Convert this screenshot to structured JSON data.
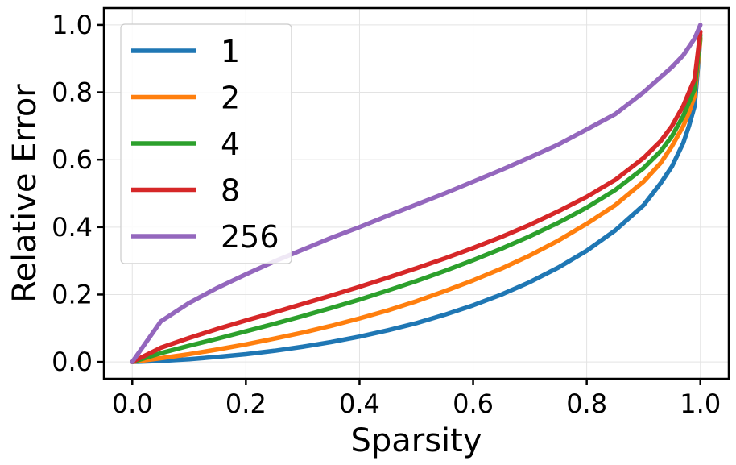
{
  "chart_data": {
    "type": "line",
    "title": "",
    "xlabel": "Sparsity",
    "ylabel": "Relative Error",
    "xlim": [
      -0.05,
      1.05
    ],
    "ylim": [
      -0.05,
      1.05
    ],
    "xticks": [
      0.0,
      0.2,
      0.4,
      0.6,
      0.8,
      1.0
    ],
    "yticks": [
      0.0,
      0.2,
      0.4,
      0.6,
      0.8,
      1.0
    ],
    "grid": true,
    "legend_position": "top-left",
    "x": [
      0,
      0.05,
      0.1,
      0.15,
      0.2,
      0.25,
      0.3,
      0.35,
      0.4,
      0.45,
      0.5,
      0.55,
      0.6,
      0.65,
      0.7,
      0.75,
      0.8,
      0.85,
      0.9,
      0.93,
      0.95,
      0.97,
      0.98,
      0.99,
      1.0
    ],
    "series": [
      {
        "name": "1",
        "color": "#1f77b4",
        "values": [
          0.0,
          0.003,
          0.008,
          0.015,
          0.023,
          0.033,
          0.045,
          0.059,
          0.075,
          0.094,
          0.115,
          0.14,
          0.168,
          0.2,
          0.237,
          0.28,
          0.33,
          0.39,
          0.465,
          0.53,
          0.58,
          0.65,
          0.7,
          0.76,
          0.96
        ]
      },
      {
        "name": "2",
        "color": "#ff7f0e",
        "values": [
          0.0,
          0.011,
          0.023,
          0.037,
          0.052,
          0.069,
          0.087,
          0.107,
          0.129,
          0.153,
          0.18,
          0.21,
          0.242,
          0.277,
          0.316,
          0.36,
          0.41,
          0.465,
          0.535,
          0.59,
          0.64,
          0.7,
          0.74,
          0.79,
          0.96
        ]
      },
      {
        "name": "4",
        "color": "#2ca02c",
        "values": [
          0.0,
          0.026,
          0.048,
          0.069,
          0.091,
          0.113,
          0.136,
          0.16,
          0.185,
          0.212,
          0.24,
          0.27,
          0.302,
          0.336,
          0.373,
          0.413,
          0.458,
          0.51,
          0.575,
          0.625,
          0.67,
          0.73,
          0.77,
          0.81,
          0.97
        ]
      },
      {
        "name": "8",
        "color": "#d62728",
        "values": [
          0.0,
          0.042,
          0.071,
          0.098,
          0.123,
          0.147,
          0.172,
          0.197,
          0.223,
          0.25,
          0.278,
          0.307,
          0.338,
          0.371,
          0.407,
          0.447,
          0.49,
          0.54,
          0.605,
          0.655,
          0.7,
          0.76,
          0.8,
          0.84,
          0.98
        ]
      },
      {
        "name": "256",
        "color": "#9467bd",
        "values": [
          0.0,
          0.12,
          0.175,
          0.22,
          0.26,
          0.298,
          0.333,
          0.368,
          0.4,
          0.434,
          0.467,
          0.5,
          0.535,
          0.57,
          0.607,
          0.645,
          0.69,
          0.735,
          0.8,
          0.845,
          0.875,
          0.91,
          0.935,
          0.96,
          1.0
        ]
      }
    ]
  }
}
